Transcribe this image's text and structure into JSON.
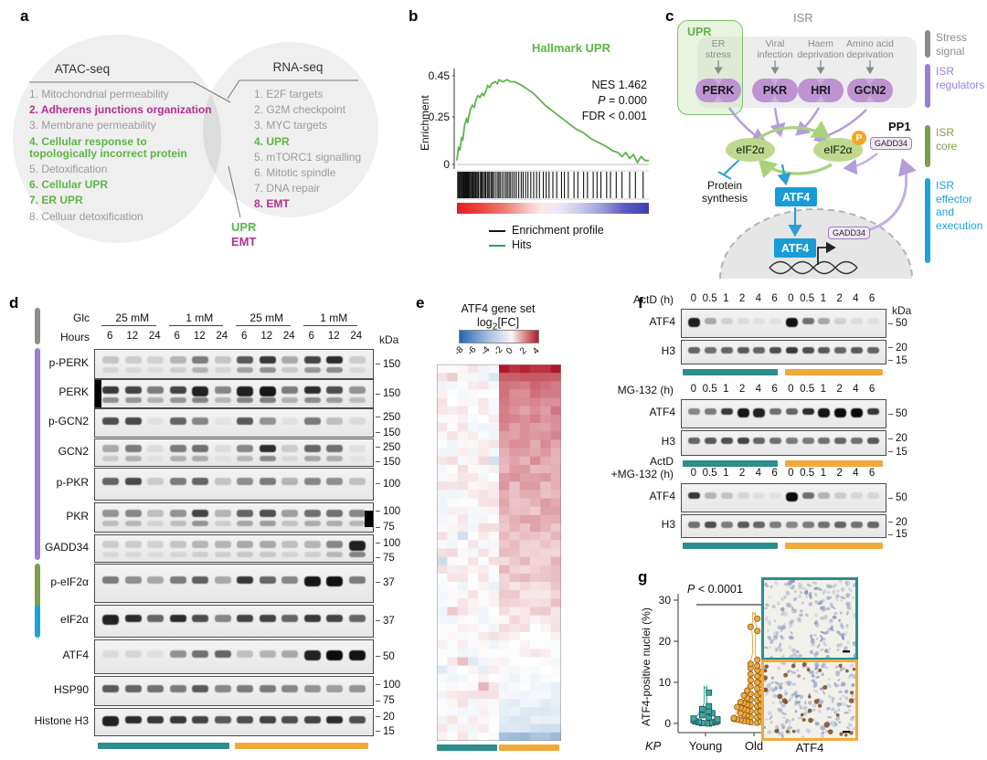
{
  "colors": {
    "teal": "#2b8d8d",
    "orange": "#f2a93b",
    "purple": "#9a7fd6",
    "olive": "#7f9d4a",
    "blue": "#1ba3dc",
    "green": "#5cb546",
    "magenta": "#b3308e",
    "gray": "#8c8c8c",
    "heat_red": "#b2182b",
    "heat_blue": "#2166ac"
  },
  "panel_a": {
    "label": "a",
    "left_title": "ATAC-seq",
    "right_title": "RNA-seq",
    "left_items": [
      {
        "text": "1. Mitochondrial permeability",
        "style": "gray"
      },
      {
        "text": "2. Adherens junctions organization",
        "style": "magenta"
      },
      {
        "text": "3. Membrane permeability",
        "style": "gray"
      },
      {
        "text": "4. Cellular response to\n    topologically incorrect protein",
        "style": "green"
      },
      {
        "text": "5. Detoxification",
        "style": "gray"
      },
      {
        "text": "6. Cellular UPR",
        "style": "green"
      },
      {
        "text": "7. ER UPR",
        "style": "green"
      },
      {
        "text": "8. Celluar detoxification",
        "style": "gray"
      }
    ],
    "right_items": [
      {
        "text": "1. E2F targets",
        "style": "gray"
      },
      {
        "text": "2. G2M checkpoint",
        "style": "gray"
      },
      {
        "text": "3. MYC targets",
        "style": "gray"
      },
      {
        "text": "4. UPR",
        "style": "green"
      },
      {
        "text": "5. mTORC1 signalling",
        "style": "gray"
      },
      {
        "text": "6. Mitotic spindle",
        "style": "gray"
      },
      {
        "text": "7. DNA repair",
        "style": "gray"
      },
      {
        "text": "8. EMT",
        "style": "magenta"
      }
    ],
    "overlap_labels": [
      {
        "text": "UPR",
        "style": "green"
      },
      {
        "text": "EMT",
        "style": "magenta"
      }
    ]
  },
  "panel_b": {
    "label": "b",
    "title": "Hallmark UPR",
    "ylabel": "Enrichment",
    "yticks": [
      {
        "v": "0.45",
        "y": 83
      },
      {
        "v": "0.25",
        "y": 128
      },
      {
        "v": "0",
        "y": 180
      }
    ],
    "nes": "NES 1.462",
    "p_italic": "P",
    "p_rest": " = 0.000",
    "fdr": "FDR < 0.001",
    "legend": [
      {
        "label": "Enrichment profile",
        "color": "#111"
      },
      {
        "label": "Hits",
        "color": "#2aa05a"
      }
    ],
    "chart_data": {
      "type": "line",
      "title": "Hallmark UPR",
      "ylabel": "Enrichment",
      "ylim": [
        0,
        0.45
      ],
      "curve": [
        [
          0,
          0.02
        ],
        [
          0.008,
          0.09
        ],
        [
          0.015,
          0.07
        ],
        [
          0.025,
          0.14
        ],
        [
          0.03,
          0.12
        ],
        [
          0.04,
          0.2
        ],
        [
          0.05,
          0.23
        ],
        [
          0.055,
          0.21
        ],
        [
          0.07,
          0.28
        ],
        [
          0.08,
          0.3
        ],
        [
          0.09,
          0.29
        ],
        [
          0.1,
          0.33
        ],
        [
          0.11,
          0.35
        ],
        [
          0.12,
          0.34
        ],
        [
          0.13,
          0.36
        ],
        [
          0.14,
          0.35
        ],
        [
          0.15,
          0.37
        ],
        [
          0.16,
          0.4
        ],
        [
          0.17,
          0.39
        ],
        [
          0.18,
          0.41
        ],
        [
          0.2,
          0.42
        ],
        [
          0.21,
          0.41
        ],
        [
          0.22,
          0.43
        ],
        [
          0.24,
          0.42
        ],
        [
          0.26,
          0.43
        ],
        [
          0.28,
          0.42
        ],
        [
          0.3,
          0.42
        ],
        [
          0.32,
          0.41
        ],
        [
          0.34,
          0.4
        ],
        [
          0.37,
          0.38
        ],
        [
          0.4,
          0.36
        ],
        [
          0.43,
          0.33
        ],
        [
          0.46,
          0.3
        ],
        [
          0.5,
          0.27
        ],
        [
          0.54,
          0.24
        ],
        [
          0.58,
          0.21
        ],
        [
          0.62,
          0.18
        ],
        [
          0.66,
          0.16
        ],
        [
          0.7,
          0.13
        ],
        [
          0.74,
          0.11
        ],
        [
          0.78,
          0.09
        ],
        [
          0.81,
          0.07
        ],
        [
          0.84,
          0.06
        ],
        [
          0.86,
          0.04
        ],
        [
          0.88,
          0.06
        ],
        [
          0.9,
          0.03
        ],
        [
          0.92,
          0.05
        ],
        [
          0.94,
          0.01
        ],
        [
          0.96,
          0.04
        ],
        [
          0.98,
          0.02
        ],
        [
          1,
          0.02
        ]
      ],
      "hits": [
        0.004,
        0.009,
        0.013,
        0.018,
        0.022,
        0.027,
        0.03,
        0.034,
        0.037,
        0.041,
        0.045,
        0.05,
        0.054,
        0.057,
        0.06,
        0.065,
        0.07,
        0.076,
        0.08,
        0.085,
        0.09,
        0.096,
        0.1,
        0.106,
        0.112,
        0.12,
        0.126,
        0.13,
        0.137,
        0.144,
        0.15,
        0.158,
        0.163,
        0.17,
        0.178,
        0.185,
        0.19,
        0.2,
        0.21,
        0.218,
        0.225,
        0.235,
        0.245,
        0.255,
        0.263,
        0.272,
        0.28,
        0.29,
        0.3,
        0.31,
        0.322,
        0.335,
        0.345,
        0.358,
        0.37,
        0.385,
        0.4,
        0.415,
        0.43,
        0.45,
        0.465,
        0.48,
        0.5,
        0.52,
        0.545,
        0.56,
        0.58,
        0.61,
        0.63,
        0.66,
        0.68,
        0.71,
        0.73,
        0.75,
        0.78,
        0.8,
        0.83,
        0.86,
        0.9,
        0.93,
        0.97
      ]
    }
  },
  "panel_c": {
    "label": "c",
    "isr_title": "ISR",
    "upr_label": "UPR",
    "stressors": [
      "ER\nstress",
      "Viral\ninfection",
      "Haem\ndeprivation",
      "Amino acid\ndeprivation"
    ],
    "kinases": [
      "PERK",
      "PKR",
      "HRI",
      "GCN2"
    ],
    "eif2a": "eIF2α",
    "p_badge": "P",
    "pp1": "PP1",
    "gadd34": "GADD34",
    "protein_synthesis": "Protein\nsynthesis",
    "atf4": "ATF4",
    "side_labels": [
      {
        "text": "Stress\nsignal",
        "color": "#8c8c8c",
        "bar": [
          33,
          30
        ]
      },
      {
        "text": "ISR\nregulators",
        "color": "#9a7fd6",
        "bar": [
          70,
          48
        ]
      },
      {
        "text": "ISR\ncore",
        "color": "#7f9d4a",
        "bar": [
          137,
          46
        ]
      },
      {
        "text": "ISR\neffector\nand\nexecution",
        "color": "#1ba3dc",
        "bar": [
          195,
          93
        ]
      }
    ]
  },
  "panel_d": {
    "label": "d",
    "glc_label": "Glc",
    "hours_label": "Hours",
    "kda_header": "kDa",
    "glc_groups": [
      "25 mM",
      "1 mM",
      "25 mM",
      "1 mM"
    ],
    "hours": [
      "6",
      "12",
      "24",
      "6",
      "12",
      "24",
      "6",
      "12",
      "24",
      "6",
      "12",
      "24"
    ],
    "rows": [
      {
        "name": "p-PERK",
        "kda": [
          "150"
        ],
        "bands": [
          0.18,
          0.15,
          0.12,
          0.25,
          0.5,
          0.18,
          0.65,
          0.8,
          0.3,
          0.75,
          0.85,
          0.15
        ],
        "double": true
      },
      {
        "name": "PERK",
        "kda": [
          "150"
        ],
        "bands": [
          0.8,
          0.75,
          0.5,
          0.75,
          0.9,
          0.45,
          0.9,
          0.95,
          0.5,
          0.85,
          0.7,
          0.4
        ],
        "double": true,
        "blob": "left"
      },
      {
        "name": "p-GCN2",
        "kda": [
          "250",
          "150"
        ],
        "bands": [
          0.7,
          0.72,
          0.05,
          0.6,
          0.45,
          0.04,
          0.65,
          0.4,
          0.05,
          0.5,
          0.2,
          0.08
        ]
      },
      {
        "name": "GCN2",
        "kda": [
          "250",
          "150"
        ],
        "bands": [
          0.3,
          0.5,
          0.08,
          0.5,
          0.55,
          0.08,
          0.45,
          0.85,
          0.15,
          0.6,
          0.55,
          0.06
        ],
        "double": true
      },
      {
        "name": "p-PKR",
        "kda": [
          "100"
        ],
        "bands": [
          0.6,
          0.72,
          0.15,
          0.5,
          0.6,
          0.18,
          0.42,
          0.5,
          0.25,
          0.45,
          0.42,
          0.2
        ]
      },
      {
        "name": "PKR",
        "kda": [
          "100",
          "75"
        ],
        "bands": [
          0.4,
          0.45,
          0.2,
          0.4,
          0.75,
          0.25,
          0.6,
          0.7,
          0.35,
          0.55,
          0.55,
          0.45
        ],
        "double": true,
        "blob": "right"
      },
      {
        "name": "GADD34",
        "kda": [
          "100",
          "75"
        ],
        "bands": [
          0.15,
          0.15,
          0.12,
          0.18,
          0.25,
          0.25,
          0.3,
          0.3,
          0.2,
          0.25,
          0.45,
          0.9
        ],
        "double": true
      },
      {
        "name": "p-eIF2α",
        "kda": [
          "37"
        ],
        "bands": [
          0.5,
          0.42,
          0.3,
          0.5,
          0.62,
          0.3,
          0.8,
          0.6,
          0.45,
          0.95,
          0.97,
          0.5
        ]
      },
      {
        "name": "eIF2α",
        "kda": [
          "37"
        ],
        "bands": [
          0.9,
          0.85,
          0.6,
          0.85,
          0.7,
          0.45,
          0.75,
          0.75,
          0.6,
          0.8,
          0.75,
          0.6
        ]
      },
      {
        "name": "ATF4",
        "kda": [
          "50"
        ],
        "bands": [
          0.08,
          0.1,
          0.06,
          0.4,
          0.55,
          0.6,
          0.2,
          0.25,
          0.3,
          0.9,
          1,
          0.97
        ]
      },
      {
        "name": "HSP90",
        "kda": [
          "100",
          "75"
        ],
        "bands": [
          0.65,
          0.6,
          0.55,
          0.5,
          0.65,
          0.45,
          0.5,
          0.5,
          0.45,
          0.4,
          0.35,
          0.4
        ]
      },
      {
        "name": "Histone H3",
        "kda": [
          "20",
          "15"
        ],
        "bands": [
          0.9,
          0.85,
          0.8,
          0.8,
          0.75,
          0.65,
          0.7,
          0.75,
          0.7,
          0.75,
          0.85,
          0.7
        ]
      }
    ]
  },
  "panel_e": {
    "label": "e",
    "title1": "ATF4 gene set",
    "title2_pre": "log",
    "title2_sub": "2",
    "title2_post": "[FC]",
    "scale_labels": [
      "-8",
      "-6",
      "-4",
      "-2",
      "0",
      "2",
      "4"
    ],
    "heatmap": {
      "rows": 45,
      "cols": 12,
      "seed": 7,
      "right_profile": [
        3.9,
        2.6,
        2.4,
        2.2,
        2.1,
        2.0,
        1.9,
        1.85,
        1.8,
        1.7,
        1.65,
        1.6,
        1.55,
        1.5,
        1.45,
        1.4,
        1.35,
        1.3,
        1.25,
        1.2,
        1.15,
        1.1,
        1.05,
        1.0,
        0.95,
        0.9,
        0.85,
        0.8,
        0.7,
        0.6,
        0.5,
        0.4,
        0.3,
        0.2,
        0.1,
        0.0,
        -0.15,
        -0.3,
        -0.45,
        -0.6,
        -0.75,
        -0.9,
        -1.1,
        -1.4,
        -3.2
      ]
    }
  },
  "panel_f": {
    "label": "f",
    "kda_header": "kDa",
    "times": [
      "0",
      "0.5",
      "1",
      "2",
      "4",
      "6",
      "0",
      "0.5",
      "1",
      "2",
      "4",
      "6"
    ],
    "blocks": [
      {
        "treatment": "ActD (h)",
        "show_kda": true,
        "rows": [
          {
            "name": "ATF4",
            "kda": [
              "50"
            ],
            "bands": [
              0.9,
              0.3,
              0.12,
              0.08,
              0.06,
              0.05,
              0.97,
              0.55,
              0.3,
              0.12,
              0.08,
              0.06
            ]
          },
          {
            "name": "H3",
            "kda": [
              "20",
              "15"
            ],
            "bands": [
              0.6,
              0.55,
              0.6,
              0.65,
              0.6,
              0.7,
              0.8,
              0.7,
              0.65,
              0.6,
              0.65,
              0.6
            ]
          }
        ]
      },
      {
        "treatment": "MG-132 (h)",
        "show_kda": false,
        "rows": [
          {
            "name": "ATF4",
            "kda": [
              "50"
            ],
            "bands": [
              0.45,
              0.5,
              0.8,
              0.95,
              0.9,
              0.55,
              0.6,
              0.85,
              0.95,
              1,
              1,
              0.8
            ]
          },
          {
            "name": "H3",
            "kda": [
              "20",
              "15"
            ],
            "bands": [
              0.6,
              0.65,
              0.7,
              0.75,
              0.6,
              0.55,
              0.5,
              0.5,
              0.55,
              0.6,
              0.55,
              0.65
            ]
          }
        ]
      },
      {
        "treatment": "ActD\n+MG-132 (h)",
        "show_kda": false,
        "rows": [
          {
            "name": "ATF4",
            "kda": [
              "50"
            ],
            "bands": [
              0.8,
              0.25,
              0.18,
              0.1,
              0.06,
              0.05,
              1,
              0.55,
              0.25,
              0.15,
              0.1,
              0.1
            ]
          },
          {
            "name": "H3",
            "kda": [
              "20",
              "15"
            ],
            "bands": [
              0.55,
              0.7,
              0.5,
              0.65,
              0.6,
              0.5,
              0.45,
              0.5,
              0.55,
              0.6,
              0.55,
              0.6
            ]
          }
        ]
      }
    ]
  },
  "panel_g": {
    "label": "g",
    "ylabel": "ATF4-positive nuclei (%)",
    "yticks": [
      "30",
      "20",
      "10",
      "0"
    ],
    "p_italic": "P",
    "p_rest": " < 0.0001",
    "x_prefix": "KP",
    "ihc_label": "ATF4",
    "chart_data": {
      "type": "scatter",
      "ylabel": "ATF4-positive nuclei (%)",
      "ylim": [
        0,
        30
      ],
      "groups": [
        {
          "name": "Young",
          "color": "#3aa8a2",
          "values": [
            0,
            0.1,
            0.2,
            0.3,
            0.4,
            0.5,
            0.6,
            0.8,
            1.0,
            1.2,
            1.5,
            2.0,
            2.5,
            3.0,
            3.5,
            4.2,
            7.5
          ]
        },
        {
          "name": "Old",
          "color": "#f2a93b",
          "values": [
            0.2,
            0.3,
            0.4,
            0.5,
            0.5,
            0.6,
            0.7,
            0.8,
            0.9,
            1.0,
            1.0,
            1.1,
            1.2,
            1.3,
            1.5,
            1.6,
            1.8,
            2.0,
            2.0,
            2.2,
            2.4,
            2.5,
            2.6,
            2.8,
            3.0,
            3.0,
            3.2,
            3.4,
            3.5,
            3.6,
            3.8,
            4.0,
            4.0,
            4.2,
            4.4,
            4.5,
            4.6,
            4.8,
            5.0,
            5.0,
            5.2,
            5.5,
            5.6,
            5.8,
            6.0,
            6.2,
            6.5,
            6.8,
            7.0,
            7.2,
            7.5,
            8.0,
            8.5,
            9.0,
            9.5,
            10.0,
            10.5,
            11.0,
            11.5,
            12.0,
            12.5,
            13.0,
            13.5,
            14.0,
            14.5,
            15.5,
            22.5,
            23.5,
            25.5
          ]
        }
      ]
    }
  }
}
